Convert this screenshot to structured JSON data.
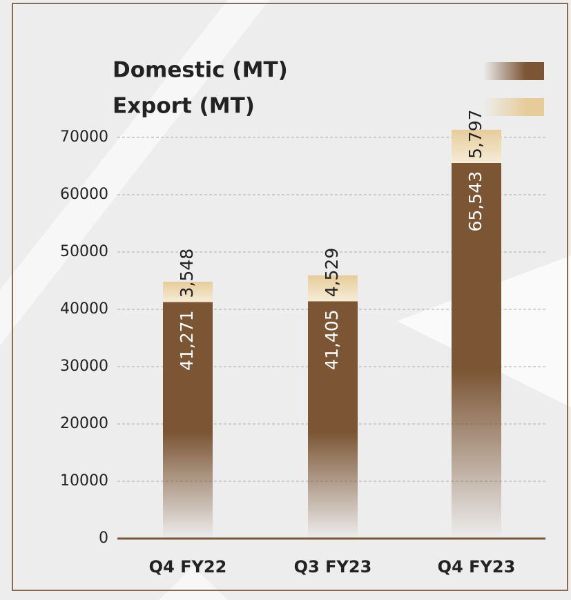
{
  "chart_data": {
    "type": "stacked_bar",
    "categories": [
      "Q4 FY22",
      "Q3 FY23",
      "Q4 FY23"
    ],
    "series": [
      {
        "name": "Domestic (MT)",
        "color": "#7b5534",
        "values": [
          41271,
          41405,
          65543
        ],
        "value_labels": [
          "41,271",
          "41,405",
          "65,543"
        ]
      },
      {
        "name": "Export (MT)",
        "color": "#e6cc9a",
        "values": [
          3548,
          4529,
          5797
        ],
        "value_labels": [
          "3,548",
          "4,529",
          "5,797"
        ]
      }
    ],
    "ylim": [
      0,
      72000
    ],
    "yticks": [
      0,
      10000,
      20000,
      30000,
      40000,
      50000,
      60000,
      70000
    ],
    "grid": true
  }
}
